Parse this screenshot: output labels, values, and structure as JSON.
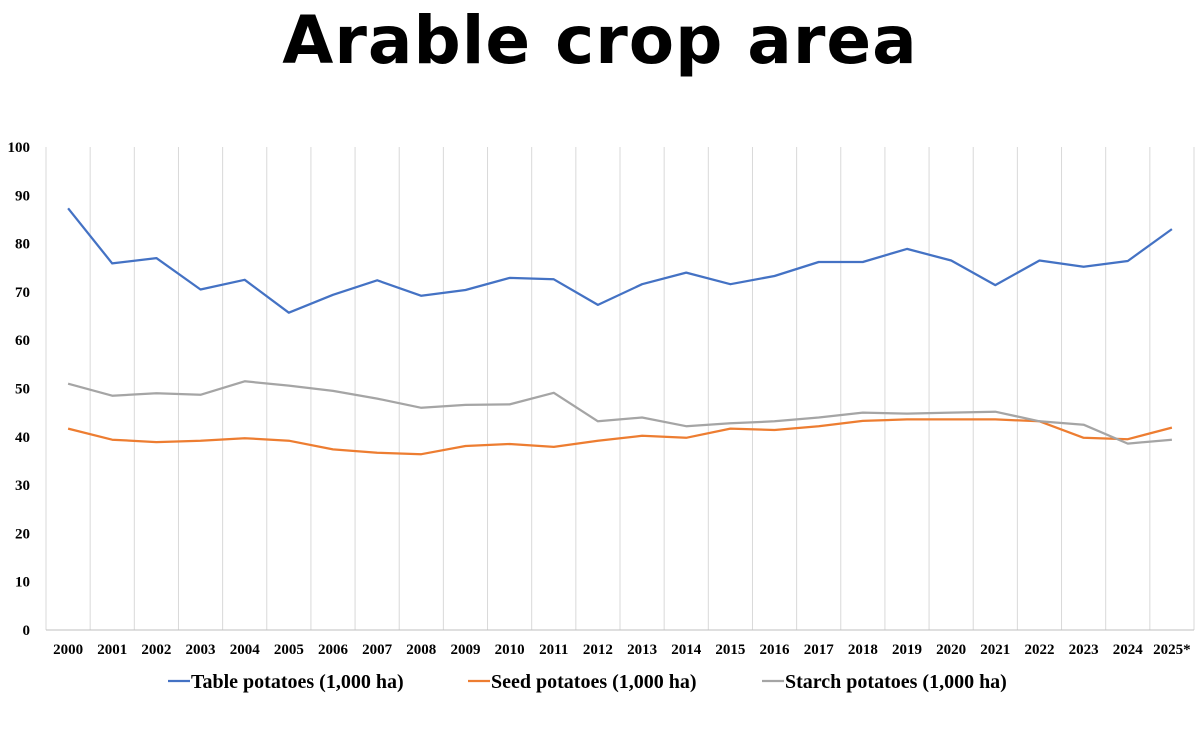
{
  "chart_data": {
    "type": "line",
    "title": "Arable crop area",
    "xlabel": "",
    "ylabel": "",
    "ylim": [
      0,
      100
    ],
    "yticks": [
      "0",
      "10",
      "20",
      "30",
      "40",
      "50",
      "60",
      "70",
      "80",
      "90",
      "100"
    ],
    "categories": [
      "2000",
      "2001",
      "2002",
      "2003",
      "2004",
      "2005",
      "2006",
      "2007",
      "2008",
      "2009",
      "2010",
      "2011",
      "2012",
      "2013",
      "2014",
      "2015",
      "2016",
      "2017",
      "2018",
      "2019",
      "2020",
      "2021",
      "2022",
      "2023",
      "2024",
      "2025*"
    ],
    "grid": "vertical",
    "legend_position": "bottom",
    "series": [
      {
        "name": "Table potatoes (1,000 ha)",
        "color": "#4472C4",
        "values": [
          87.3,
          75.9,
          77.0,
          70.5,
          72.5,
          65.7,
          69.4,
          72.4,
          69.2,
          70.4,
          72.9,
          72.6,
          67.3,
          71.6,
          74.0,
          71.6,
          73.3,
          76.2,
          76.2,
          78.9,
          76.5,
          71.4,
          76.5,
          75.2,
          76.4,
          83.0
        ]
      },
      {
        "name": "Seed potatoes (1,000 ha)",
        "color": "#ED7D31",
        "values": [
          41.7,
          39.4,
          38.9,
          39.2,
          39.7,
          39.2,
          37.4,
          36.7,
          36.4,
          38.1,
          38.5,
          37.9,
          39.2,
          40.2,
          39.8,
          41.7,
          41.4,
          42.2,
          43.3,
          43.6,
          43.6,
          43.6,
          43.2,
          39.8,
          39.5,
          41.9
        ]
      },
      {
        "name": "Starch potatoes (1,000 ha)",
        "color": "#A5A5A5",
        "values": [
          51.0,
          48.5,
          49.0,
          48.7,
          51.5,
          50.6,
          49.5,
          47.9,
          46.0,
          46.6,
          46.7,
          49.1,
          43.2,
          44.0,
          42.2,
          42.8,
          43.2,
          44.0,
          45.0,
          44.8,
          45.0,
          45.2,
          43.2,
          42.5,
          38.6,
          39.4
        ]
      }
    ]
  }
}
